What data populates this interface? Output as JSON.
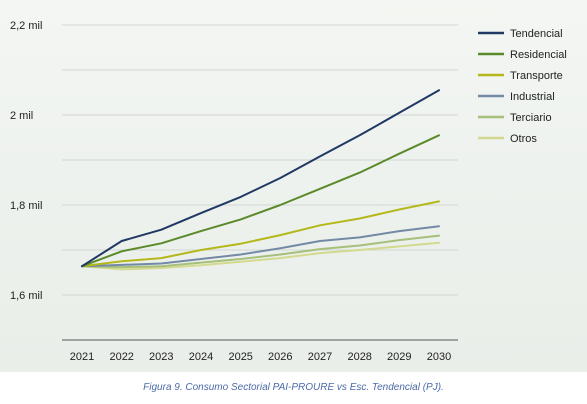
{
  "chart_data": {
    "type": "line",
    "title": "",
    "xlabel": "",
    "ylabel": "",
    "x": [
      "2021",
      "2022",
      "2023",
      "2024",
      "2025",
      "2026",
      "2027",
      "2028",
      "2029",
      "2030"
    ],
    "ylim": [
      1.5,
      2.2
    ],
    "y_ticks": [
      {
        "value": 1.6,
        "label": "1,6 mil"
      },
      {
        "value": 1.8,
        "label": "1,8 mil"
      },
      {
        "value": 2.0,
        "label": "2 mil"
      },
      {
        "value": 2.2,
        "label": "2,2 mil"
      }
    ],
    "grid": true,
    "legend_position": "top-right",
    "series": [
      {
        "name": "Tendencial",
        "color": "#1f3864",
        "values": [
          1.664,
          1.72,
          1.745,
          1.782,
          1.818,
          1.86,
          1.908,
          1.955,
          2.005,
          2.055
        ]
      },
      {
        "name": "Residencial",
        "color": "#5a8a2a",
        "values": [
          1.664,
          1.697,
          1.715,
          1.742,
          1.768,
          1.8,
          1.836,
          1.872,
          1.914,
          1.955
        ]
      },
      {
        "name": "Transporte",
        "color": "#b5b81a",
        "values": [
          1.664,
          1.675,
          1.682,
          1.7,
          1.714,
          1.733,
          1.755,
          1.77,
          1.79,
          1.808
        ]
      },
      {
        "name": "Industrial",
        "color": "#7389a6",
        "values": [
          1.664,
          1.667,
          1.67,
          1.68,
          1.69,
          1.704,
          1.72,
          1.728,
          1.742,
          1.753
        ]
      },
      {
        "name": "Terciario",
        "color": "#a6bf7a",
        "values": [
          1.664,
          1.662,
          1.664,
          1.672,
          1.68,
          1.69,
          1.702,
          1.71,
          1.722,
          1.732
        ]
      },
      {
        "name": "Otros",
        "color": "#d3da8f",
        "values": [
          1.664,
          1.657,
          1.66,
          1.666,
          1.674,
          1.682,
          1.693,
          1.7,
          1.708,
          1.716
        ]
      }
    ]
  },
  "caption": "Figura 9. Consumo Sectorial PAI-PROURE vs Esc. Tendencial (PJ)."
}
